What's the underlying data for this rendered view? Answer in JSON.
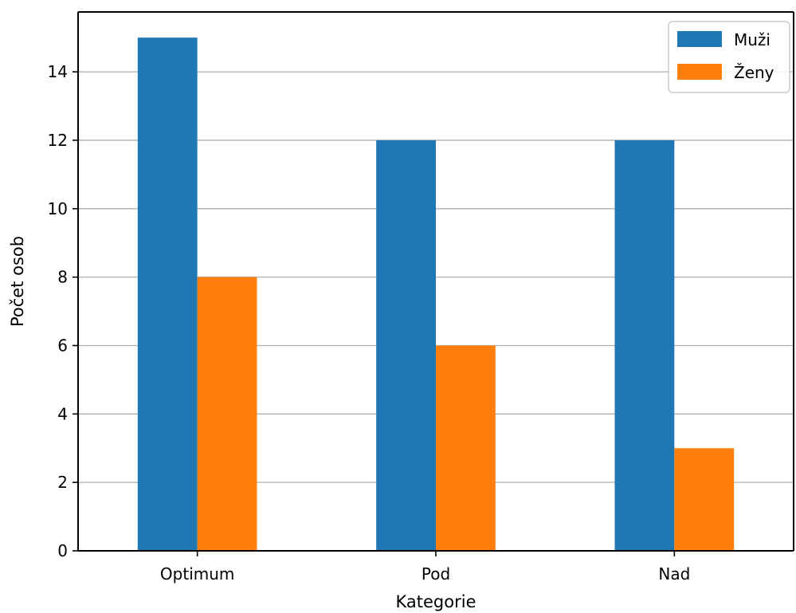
{
  "chart_data": {
    "type": "bar",
    "categories": [
      "Optimum",
      "Pod",
      "Nad"
    ],
    "series": [
      {
        "name": "Muži",
        "color": "#1f77b4",
        "values": [
          15,
          12,
          12
        ]
      },
      {
        "name": "Ženy",
        "color": "#ff7f0e",
        "values": [
          8,
          6,
          3
        ]
      }
    ],
    "xlabel": "Kategorie",
    "ylabel": "Počet osob",
    "ylim": [
      0,
      15.75
    ],
    "yticks": [
      0,
      2,
      4,
      6,
      8,
      10,
      12,
      14
    ],
    "grid": "horizontal",
    "legend_position": "top-right"
  }
}
